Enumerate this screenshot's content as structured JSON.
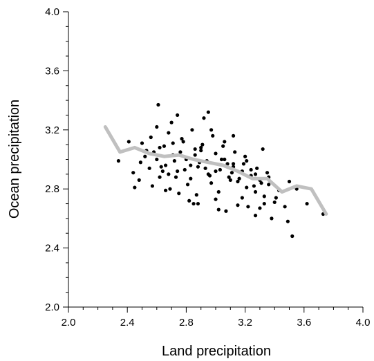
{
  "chart_data": {
    "type": "scatter",
    "title": "",
    "xlabel": "Land precipitation",
    "ylabel": "Ocean precipitation",
    "xlim": [
      2.0,
      4.0
    ],
    "ylim": [
      2.0,
      4.0
    ],
    "xticks": [
      "2.0",
      "2.4",
      "2.8",
      "3.2",
      "3.6",
      "4.0"
    ],
    "yticks": [
      "2.0",
      "2.4",
      "2.8",
      "3.2",
      "3.6",
      "4.0"
    ],
    "grid": false,
    "colors": {
      "points": "#000000",
      "trend": "#c0c0c0"
    },
    "series": [
      {
        "kind": "scatter",
        "x": [
          2.34,
          2.41,
          2.44,
          2.49,
          2.5,
          2.52,
          2.55,
          2.58,
          2.6,
          2.62,
          2.65,
          2.66,
          2.68,
          2.71,
          2.74,
          2.77,
          2.8,
          2.83,
          2.86,
          2.88,
          2.91,
          2.94,
          2.97,
          3.0,
          3.03,
          3.06,
          3.09,
          3.12,
          3.15,
          3.18,
          3.21,
          3.24,
          3.27,
          3.3,
          3.33,
          3.36,
          3.4,
          3.43,
          3.47,
          3.5,
          3.55,
          2.56,
          2.62,
          2.7,
          2.78,
          2.84,
          2.9,
          2.98,
          3.05,
          3.12,
          3.2,
          3.28,
          3.36,
          2.48,
          2.57,
          2.66,
          2.73,
          2.81,
          2.87,
          2.95,
          3.02,
          3.1,
          3.18,
          3.26,
          3.33,
          3.41,
          2.6,
          2.68,
          2.76,
          2.83,
          2.89,
          2.96,
          3.04,
          3.11,
          3.19,
          3.27,
          3.35,
          2.53,
          2.64,
          2.72,
          2.79,
          2.86,
          2.93,
          3.0,
          3.08,
          3.16,
          3.24,
          3.31,
          2.74,
          2.92,
          3.12,
          3.32,
          2.82,
          3.02,
          3.22,
          2.69,
          2.88,
          3.07,
          3.27,
          2.95,
          2.45,
          3.38,
          3.73,
          3.52,
          3.62,
          3.49,
          2.61,
          2.75,
          2.85,
          3.0,
          3.15,
          3.3,
          2.97,
          3.06,
          2.63,
          2.71,
          3.13,
          3.21,
          2.8,
          2.9
        ],
        "y": [
          2.99,
          3.12,
          2.91,
          2.98,
          3.11,
          3.02,
          2.94,
          3.05,
          3.22,
          2.88,
          3.09,
          2.96,
          3.18,
          3.03,
          2.92,
          3.14,
          3.01,
          2.87,
          3.07,
          2.95,
          3.1,
          2.99,
          2.84,
          3.04,
          2.93,
          3.0,
          2.88,
          2.97,
          2.85,
          2.92,
          2.81,
          2.89,
          2.78,
          2.86,
          2.75,
          2.83,
          2.71,
          2.79,
          2.68,
          2.85,
          2.8,
          3.15,
          3.08,
          3.25,
          3.12,
          3.2,
          3.06,
          3.16,
          3.09,
          2.95,
          3.02,
          2.94,
          2.88,
          2.86,
          2.82,
          2.79,
          2.88,
          2.83,
          2.76,
          2.9,
          2.78,
          2.86,
          2.74,
          2.82,
          2.7,
          2.74,
          3.0,
          2.9,
          3.05,
          2.96,
          2.98,
          2.89,
          3.0,
          2.91,
          2.97,
          2.9,
          2.91,
          3.06,
          2.92,
          2.99,
          2.93,
          3.03,
          2.94,
          2.92,
          2.97,
          2.87,
          2.93,
          2.84,
          3.3,
          3.28,
          3.16,
          3.07,
          2.72,
          2.66,
          2.68,
          2.8,
          2.7,
          2.65,
          2.62,
          3.32,
          2.81,
          2.6,
          2.63,
          2.48,
          2.7,
          2.58,
          3.37,
          2.77,
          2.7,
          2.73,
          2.69,
          2.67,
          3.2,
          3.12,
          2.95,
          3.11,
          3.05,
          2.99,
          3.0,
          3.08
        ]
      },
      {
        "kind": "line",
        "x": [
          2.25,
          2.35,
          2.45,
          2.55,
          2.65,
          2.75,
          2.85,
          2.95,
          3.05,
          3.15,
          3.25,
          3.35,
          3.45,
          3.55,
          3.65,
          3.75
        ],
        "y": [
          3.22,
          3.05,
          3.08,
          3.04,
          3.02,
          3.03,
          3.0,
          2.98,
          2.96,
          2.92,
          2.87,
          2.87,
          2.78,
          2.82,
          2.8,
          2.63
        ]
      }
    ]
  }
}
